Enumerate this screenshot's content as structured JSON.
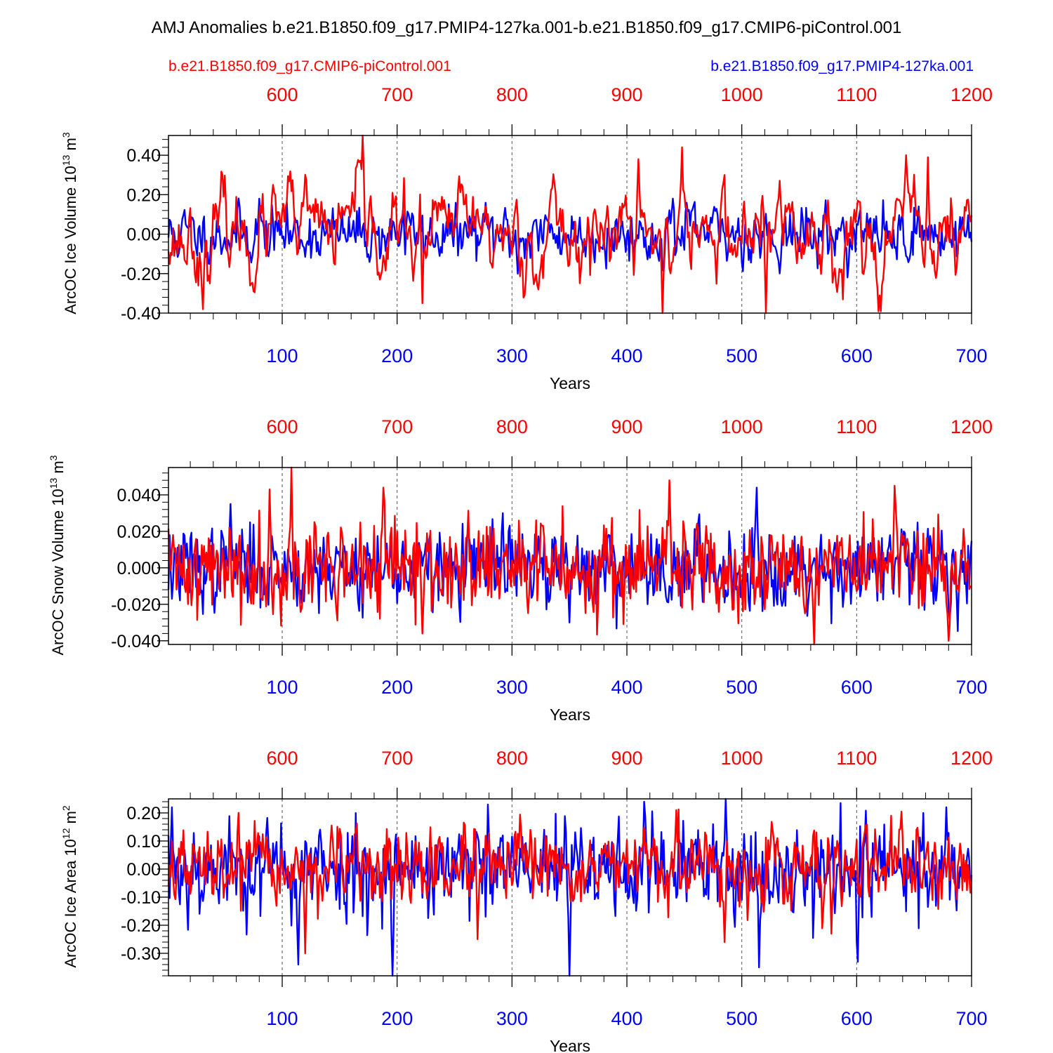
{
  "title": "AMJ Anomalies b.e21.B1850.f09_g17.PMIP4-127ka.001-b.e21.B1850.f09_g17.CMIP6-piControl.001",
  "legend": {
    "left": "b.e21.B1850.f09_g17.CMIP6-piControl.001",
    "right": "b.e21.B1850.f09_g17.PMIP4-127ka.001"
  },
  "colors": {
    "control": "#ff0000",
    "pmip": "#0000ff",
    "text": "#000000"
  },
  "chart_data": [
    {
      "type": "line",
      "ylabel": "ArcOC Ice Volume",
      "yunit_pre": "10",
      "yunit_exp": "13",
      "yunit_unit": "m",
      "yunit_unit_exp": "3",
      "xlabel": "Years",
      "ylim": [
        -0.4,
        0.5
      ],
      "xlim_bottom": [
        1,
        700
      ],
      "xlim_top": [
        501,
        1200
      ],
      "yticks": [
        -0.4,
        -0.2,
        0.0,
        0.2,
        0.4
      ],
      "ytick_labels": [
        "-0.40",
        "-0.20",
        "0.00",
        "0.20",
        "0.40"
      ],
      "xticks_bottom": [
        100,
        200,
        300,
        400,
        500,
        600,
        700
      ],
      "xticks_bottom_labels": [
        "100",
        "200",
        "300",
        "400",
        "500",
        "600",
        "700"
      ],
      "xticks_top": [
        600,
        700,
        800,
        900,
        1000,
        1100,
        1200
      ],
      "xticks_top_labels": [
        "600",
        "700",
        "800",
        "900",
        "1000",
        "1100",
        "1200"
      ],
      "gridlines_x": [
        100,
        200,
        300,
        400,
        500,
        600
      ],
      "series": [
        {
          "name": "b.e21.B1850.f09_g17.PMIP4-127ka.001",
          "color": "#0000ff",
          "amplitude": 0.07,
          "smooth": 0.45,
          "seed": 11,
          "extremes": [
            [
              80,
              0.18
            ],
            [
              205,
              0.12
            ],
            [
              440,
              0.18
            ],
            [
              305,
              -0.2
            ],
            [
              420,
              -0.12
            ]
          ]
        },
        {
          "name": "b.e21.B1850.f09_g17.CMIP6-piControl.001",
          "color": "#ff0000",
          "amplitude": 0.13,
          "smooth": 0.8,
          "seed": 23,
          "extremes": [
            [
              170,
              0.5
            ],
            [
              410,
              0.38
            ],
            [
              448,
              0.44
            ],
            [
              662,
              0.39
            ],
            [
              31,
              -0.38
            ],
            [
              431,
              -0.41
            ],
            [
              521,
              -0.4
            ],
            [
              222,
              -0.35
            ]
          ]
        }
      ]
    },
    {
      "type": "line",
      "ylabel": "ArcOC Snow Volume",
      "yunit_pre": "10",
      "yunit_exp": "13",
      "yunit_unit": "m",
      "yunit_unit_exp": "3",
      "xlabel": "Years",
      "ylim": [
        -0.042,
        0.055
      ],
      "xlim_bottom": [
        1,
        700
      ],
      "xlim_top": [
        501,
        1200
      ],
      "yticks": [
        -0.04,
        -0.02,
        0.0,
        0.02,
        0.04
      ],
      "ytick_labels": [
        "-0.040",
        "-0.020",
        "0.000",
        "0.020",
        "0.040"
      ],
      "xticks_bottom": [
        100,
        200,
        300,
        400,
        500,
        600,
        700
      ],
      "xticks_bottom_labels": [
        "100",
        "200",
        "300",
        "400",
        "500",
        "600",
        "700"
      ],
      "xticks_top": [
        600,
        700,
        800,
        900,
        1000,
        1100,
        1200
      ],
      "xticks_top_labels": [
        "600",
        "700",
        "800",
        "900",
        "1000",
        "1100",
        "1200"
      ],
      "gridlines_x": [
        100,
        200,
        300,
        400,
        500,
        600
      ],
      "series": [
        {
          "name": "b.e21.B1850.f09_g17.PMIP4-127ka.001",
          "color": "#0000ff",
          "amplitude": 0.011,
          "smooth": 0.2,
          "seed": 37,
          "extremes": [
            [
              513,
              0.044
            ],
            [
              55,
              0.035
            ],
            [
              292,
              0.03
            ],
            [
              350,
              -0.03
            ]
          ]
        },
        {
          "name": "b.e21.B1850.f09_g17.CMIP6-piControl.001",
          "color": "#ff0000",
          "amplitude": 0.013,
          "smooth": 0.1,
          "seed": 41,
          "extremes": [
            [
              108,
              0.055
            ],
            [
              89,
              0.043
            ],
            [
              188,
              0.044
            ],
            [
              437,
              0.048
            ],
            [
              633,
              0.045
            ],
            [
              563,
              -0.042
            ],
            [
              680,
              -0.04
            ],
            [
              222,
              -0.036
            ]
          ]
        }
      ]
    },
    {
      "type": "line",
      "ylabel": "ArcOC Ice Area",
      "yunit_pre": "10",
      "yunit_exp": "12",
      "yunit_unit": "m",
      "yunit_unit_exp": "2",
      "xlabel": "Years",
      "ylim": [
        -0.38,
        0.25
      ],
      "xlim_bottom": [
        1,
        700
      ],
      "xlim_top": [
        501,
        1200
      ],
      "yticks": [
        -0.3,
        -0.2,
        -0.1,
        0.0,
        0.1,
        0.2
      ],
      "ytick_labels": [
        "-0.30",
        "-0.20",
        "-0.10",
        "0.00",
        "0.10",
        "0.20"
      ],
      "xticks_bottom": [
        100,
        200,
        300,
        400,
        500,
        600,
        700
      ],
      "xticks_bottom_labels": [
        "100",
        "200",
        "300",
        "400",
        "500",
        "600",
        "700"
      ],
      "xticks_top": [
        600,
        700,
        800,
        900,
        1000,
        1100,
        1200
      ],
      "xticks_top_labels": [
        "600",
        "700",
        "800",
        "900",
        "1000",
        "1100",
        "1200"
      ],
      "gridlines_x": [
        100,
        200,
        300,
        400,
        500,
        600
      ],
      "series": [
        {
          "name": "b.e21.B1850.f09_g17.PMIP4-127ka.001",
          "color": "#0000ff",
          "amplitude": 0.085,
          "smooth": 0.15,
          "seed": 53,
          "extremes": [
            [
              4,
              0.22
            ],
            [
              415,
              0.24
            ],
            [
              486,
              0.25
            ],
            [
              678,
              0.22
            ],
            [
              196,
              -0.38
            ],
            [
              350,
              -0.38
            ],
            [
              601,
              -0.33
            ],
            [
              114,
              -0.34
            ],
            [
              515,
              -0.35
            ]
          ]
        },
        {
          "name": "b.e21.B1850.f09_g17.CMIP6-piControl.001",
          "color": "#ff0000",
          "amplitude": 0.065,
          "smooth": 0.3,
          "seed": 67,
          "extremes": [
            [
              62,
              0.2
            ],
            [
              443,
              0.21
            ],
            [
              120,
              -0.3
            ],
            [
              270,
              -0.25
            ],
            [
              485,
              -0.26
            ]
          ]
        }
      ]
    }
  ]
}
